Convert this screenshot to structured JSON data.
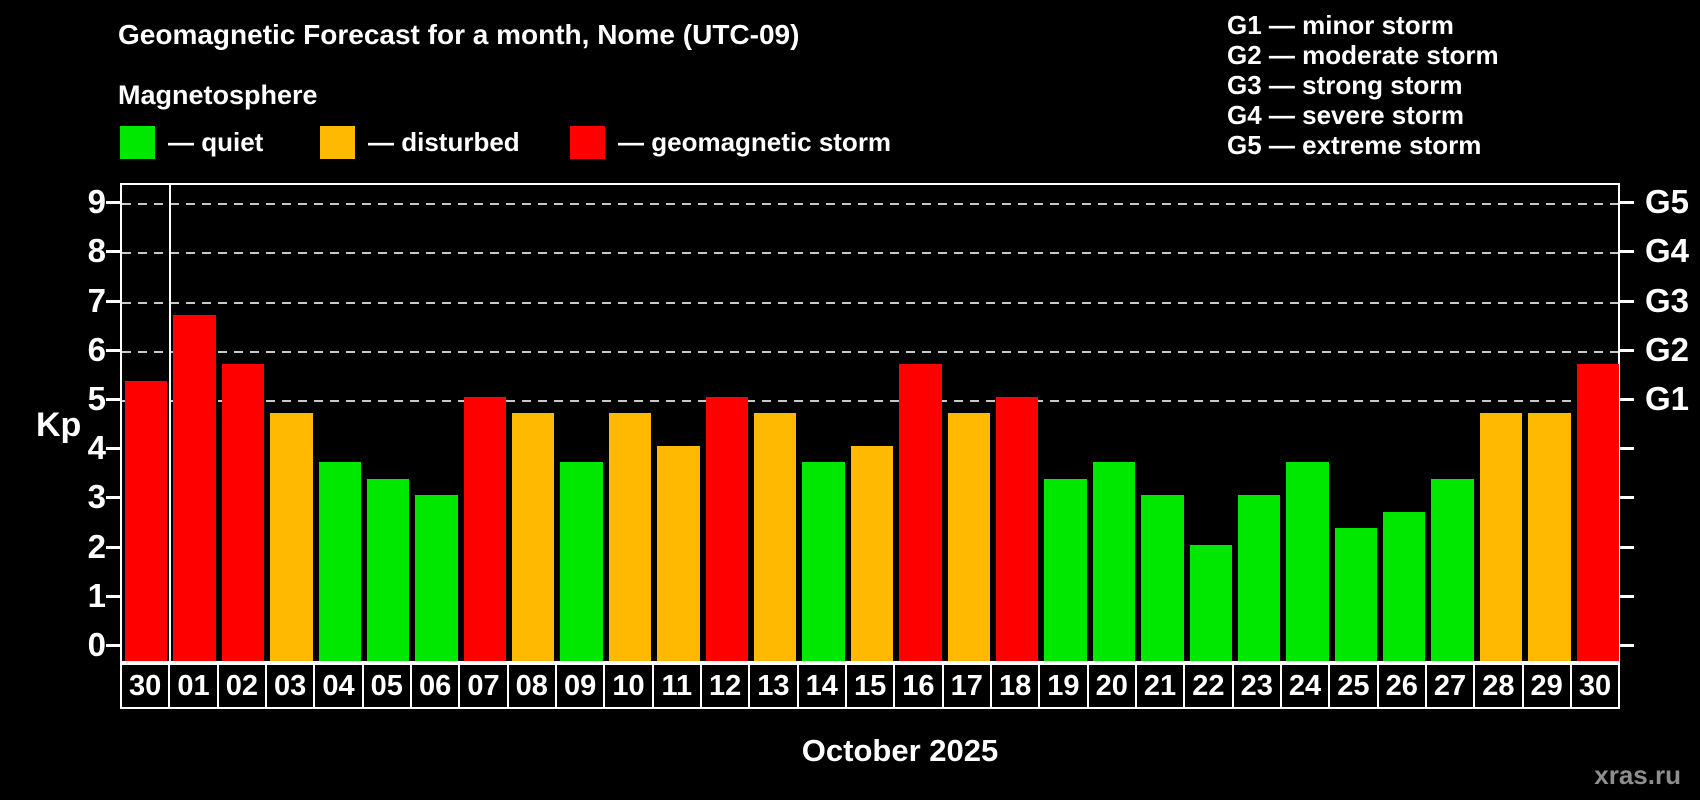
{
  "title": "Geomagnetic Forecast for a month, Nome (UTC-09)",
  "subtitle": "Magnetosphere",
  "kp_axis_label": "Kp",
  "month_label": "October 2025",
  "source": "xras.ru",
  "legend": {
    "items": [
      {
        "name": "quiet",
        "label": "— quiet",
        "color": "#00e800"
      },
      {
        "name": "disturbed",
        "label": "— disturbed",
        "color": "#ffb900"
      },
      {
        "name": "storm",
        "label": "— geomagnetic storm",
        "color": "#ff0000"
      }
    ]
  },
  "g_legend": {
    "lines": [
      "G1 — minor storm",
      "G2 — moderate storm",
      "G3 — strong storm",
      "G4 — severe storm",
      "G5 — extreme storm"
    ]
  },
  "chart_data": {
    "type": "bar",
    "title": "Geomagnetic Forecast for a month, Nome (UTC-09)",
    "ylabel": "Kp",
    "xlabel": "October 2025",
    "ylim": [
      0,
      9
    ],
    "legend_position": "top",
    "grid": "horizontal dashed lines at Kp 5,6,7,8,9 only",
    "categories": [
      "30",
      "01",
      "02",
      "03",
      "04",
      "05",
      "06",
      "07",
      "08",
      "09",
      "10",
      "11",
      "12",
      "13",
      "14",
      "15",
      "16",
      "17",
      "18",
      "19",
      "20",
      "21",
      "22",
      "23",
      "24",
      "25",
      "26",
      "27",
      "28",
      "29",
      "30"
    ],
    "values": [
      5.33,
      6.67,
      5.67,
      4.67,
      3.67,
      3.33,
      3,
      5,
      4.67,
      3.67,
      4.67,
      4,
      5,
      4.67,
      3.67,
      4,
      5.67,
      4.67,
      5,
      3.33,
      3.67,
      3,
      2,
      3,
      3.67,
      2.33,
      2.67,
      3.33,
      4.67,
      4.67,
      5.67
    ],
    "states": [
      "storm",
      "storm",
      "storm",
      "disturbed",
      "quiet",
      "quiet",
      "quiet",
      "storm",
      "disturbed",
      "quiet",
      "disturbed",
      "disturbed",
      "storm",
      "disturbed",
      "quiet",
      "disturbed",
      "storm",
      "disturbed",
      "storm",
      "quiet",
      "quiet",
      "quiet",
      "quiet",
      "quiet",
      "quiet",
      "quiet",
      "quiet",
      "quiet",
      "disturbed",
      "disturbed",
      "storm"
    ],
    "state_colors": {
      "quiet": "#00e800",
      "disturbed": "#ffb900",
      "storm": "#ff0000"
    },
    "left_axis_ticks": [
      0,
      1,
      2,
      3,
      4,
      5,
      6,
      7,
      8,
      9
    ],
    "right_axis_ticks": [
      0,
      1,
      2,
      3,
      4,
      5,
      6,
      7,
      8,
      9
    ],
    "gridline_kp": [
      5,
      6,
      7,
      8,
      9
    ],
    "right_axis_labels": [
      {
        "label": "G1",
        "kp": 5
      },
      {
        "label": "G2",
        "kp": 6
      },
      {
        "label": "G3",
        "kp": 7
      },
      {
        "label": "G4",
        "kp": 8
      },
      {
        "label": "G5",
        "kp": 9
      }
    ],
    "month_separator_after_index": 0
  }
}
